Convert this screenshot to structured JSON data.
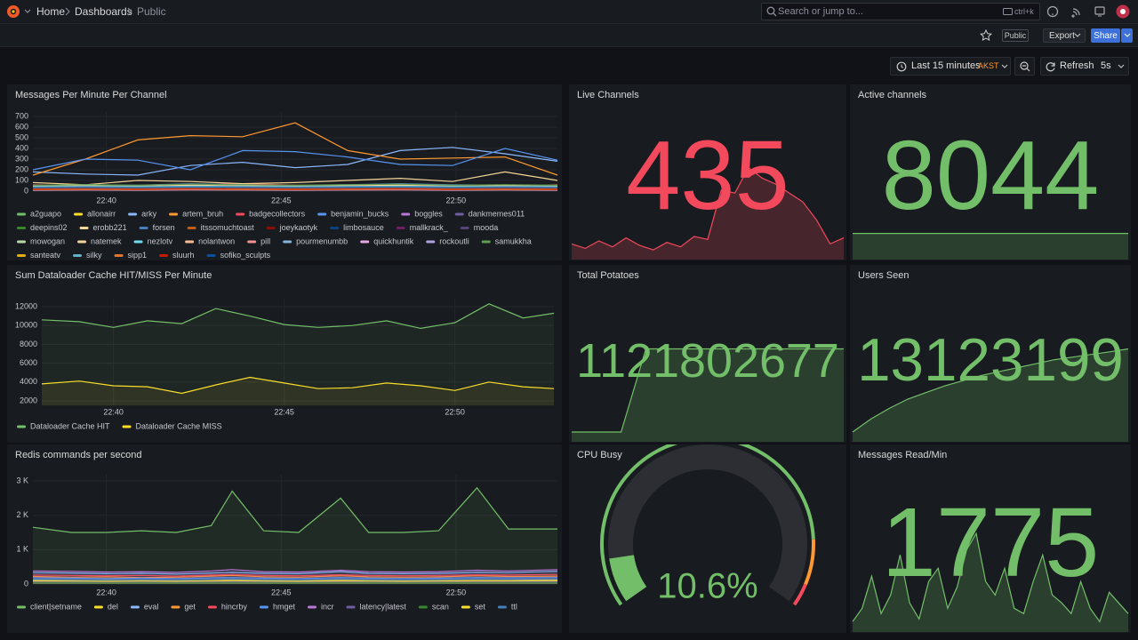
{
  "topbar": {
    "breadcrumbs": [
      "Home",
      "Dashboards",
      "Public"
    ],
    "search": "Search or jump to...",
    "shortcut": "ctrl+k"
  },
  "toolbar": {
    "public": "Public",
    "export": "Export",
    "share": "Share",
    "time_range": "Last 15 minutes",
    "timezone": "AKST",
    "refresh": "Refresh",
    "interval": "5s"
  },
  "panels": [
    {
      "type": "timeseries",
      "title": "Messages Per Minute Per Channel",
      "fill_opacity": 0,
      "x": [
        -2.1,
        -0.6,
        0.9,
        2.4,
        3.9,
        5.4,
        6.9,
        8.4,
        9.9,
        11.4,
        12.9
      ],
      "xlim": [
        -2.1,
        12.9
      ],
      "xticks": [
        {
          "value": 0,
          "label": "22:40"
        },
        {
          "value": 5,
          "label": "22:45"
        },
        {
          "value": 10,
          "label": "22:50"
        }
      ],
      "ylim": [
        0,
        740
      ],
      "yticks": [
        0,
        100,
        200,
        300,
        400,
        500,
        600,
        700
      ],
      "series": [
        {
          "name": "a2guapo",
          "color": "#73BF69",
          "values": [
            30,
            40,
            35,
            50,
            45,
            40,
            50,
            35,
            40,
            45,
            30
          ]
        },
        {
          "name": "allonairr",
          "color": "#FADE2A",
          "values": [
            20,
            25,
            30,
            20,
            35,
            40,
            30,
            25,
            20,
            30,
            25
          ]
        },
        {
          "name": "arky",
          "color": "#8AB8FF",
          "values": [
            180,
            160,
            150,
            240,
            270,
            220,
            250,
            380,
            410,
            350,
            280
          ]
        },
        {
          "name": "artem_bruh",
          "color": "#FF9830",
          "values": [
            150,
            300,
            480,
            520,
            510,
            640,
            380,
            300,
            310,
            320,
            150
          ]
        },
        {
          "name": "badgecollectors",
          "color": "#F2495C",
          "values": [
            60,
            50,
            40,
            60,
            70,
            55,
            50,
            60,
            50,
            40,
            60
          ]
        },
        {
          "name": "benjamin_bucks",
          "color": "#5794F2",
          "values": [
            200,
            300,
            290,
            200,
            380,
            370,
            320,
            250,
            240,
            400,
            290
          ]
        },
        {
          "name": "boggles",
          "color": "#B877D9",
          "values": [
            40,
            45,
            50,
            40,
            30,
            35,
            40,
            45,
            50,
            40,
            35
          ]
        },
        {
          "name": "dankmemes011",
          "color": "#705DA0",
          "values": [
            20,
            25,
            20,
            30,
            25,
            20,
            25,
            30,
            20,
            25,
            20
          ]
        },
        {
          "name": "deepins02",
          "color": "#37872D",
          "values": [
            10,
            15,
            10,
            20,
            15,
            10,
            15,
            20,
            10,
            15,
            10
          ]
        },
        {
          "name": "erobb221",
          "color": "#F4D598",
          "values": [
            80,
            60,
            100,
            90,
            70,
            80,
            100,
            120,
            90,
            180,
            100
          ]
        },
        {
          "name": "forsen",
          "color": "#447EBC",
          "values": [
            50,
            60,
            55,
            70,
            60,
            50,
            60,
            70,
            60,
            55,
            50
          ]
        },
        {
          "name": "itssomuchtoast",
          "color": "#C15C17",
          "values": [
            30,
            35,
            30,
            40,
            35,
            30,
            35,
            40,
            30,
            35,
            30
          ]
        },
        {
          "name": "joeykaotyk",
          "color": "#890F02",
          "values": [
            15,
            20,
            15,
            25,
            20,
            15,
            20,
            25,
            15,
            20,
            15
          ]
        },
        {
          "name": "limbosauce",
          "color": "#0A437C",
          "values": [
            25,
            30,
            25,
            35,
            30,
            25,
            30,
            35,
            25,
            30,
            25
          ]
        },
        {
          "name": "mallkrack_",
          "color": "#6D1F62",
          "values": [
            10,
            12,
            10,
            14,
            12,
            10,
            12,
            14,
            10,
            12,
            10
          ]
        },
        {
          "name": "mooda",
          "color": "#584477",
          "values": [
            35,
            40,
            35,
            45,
            40,
            35,
            40,
            45,
            35,
            40,
            35
          ]
        },
        {
          "name": "mowogan",
          "color": "#B7DBAB",
          "values": [
            20,
            22,
            20,
            24,
            22,
            20,
            22,
            24,
            20,
            22,
            20
          ]
        },
        {
          "name": "natemek",
          "color": "#F4D598",
          "values": [
            45,
            50,
            45,
            55,
            50,
            45,
            50,
            55,
            45,
            50,
            45
          ]
        },
        {
          "name": "nezlotv",
          "color": "#70DBED",
          "values": [
            12,
            14,
            12,
            16,
            14,
            12,
            14,
            16,
            12,
            14,
            12
          ]
        },
        {
          "name": "nolantwon",
          "color": "#F9BA8F",
          "values": [
            28,
            30,
            28,
            32,
            30,
            28,
            30,
            32,
            28,
            30,
            28
          ]
        },
        {
          "name": "pill",
          "color": "#F29191",
          "values": [
            18,
            20,
            18,
            22,
            20,
            18,
            20,
            22,
            18,
            20,
            18
          ]
        },
        {
          "name": "pourmenumbb",
          "color": "#82B5D8",
          "values": [
            38,
            40,
            38,
            42,
            40,
            38,
            40,
            42,
            38,
            40,
            38
          ]
        },
        {
          "name": "quickhuntik",
          "color": "#E5A8E2",
          "values": [
            8,
            10,
            8,
            12,
            10,
            8,
            10,
            12,
            8,
            10,
            8
          ]
        },
        {
          "name": "rockoutli",
          "color": "#AEA2E0",
          "values": [
            22,
            24,
            22,
            26,
            24,
            22,
            24,
            26,
            22,
            24,
            22
          ]
        },
        {
          "name": "samukkha",
          "color": "#629E51",
          "values": [
            55,
            60,
            55,
            65,
            60,
            55,
            60,
            65,
            55,
            60,
            55
          ]
        },
        {
          "name": "santeatv",
          "color": "#E5AC0E",
          "values": [
            14,
            16,
            14,
            18,
            16,
            14,
            16,
            18,
            14,
            16,
            14
          ]
        },
        {
          "name": "silky",
          "color": "#64B0C8",
          "values": [
            42,
            44,
            42,
            46,
            44,
            42,
            44,
            46,
            42,
            44,
            42
          ]
        },
        {
          "name": "sipp1",
          "color": "#E0752D",
          "values": [
            26,
            28,
            26,
            30,
            28,
            26,
            28,
            30,
            26,
            28,
            26
          ]
        },
        {
          "name": "sluurh",
          "color": "#BF1B00",
          "values": [
            16,
            18,
            16,
            20,
            18,
            16,
            18,
            20,
            16,
            18,
            16
          ]
        },
        {
          "name": "sofiko_sculpts",
          "color": "#0A50A1",
          "values": [
            32,
            34,
            32,
            36,
            34,
            32,
            34,
            36,
            32,
            34,
            32
          ]
        }
      ]
    },
    {
      "type": "stat",
      "title": "Live Channels",
      "value": 435,
      "color": "#F2495C",
      "sparkline": [
        130,
        115,
        140,
        120,
        150,
        125,
        110,
        135,
        120,
        155,
        145,
        310,
        300,
        385,
        350,
        330,
        300,
        270,
        210,
        130,
        150
      ]
    },
    {
      "type": "stat",
      "title": "Active channels",
      "value": 8044,
      "color": "#73BF69",
      "sparkline": [
        8044,
        8044,
        8044,
        8044,
        8044,
        8044,
        8044,
        8044,
        8044,
        8044
      ]
    },
    {
      "type": "timeseries",
      "title": "Sum Dataloader Cache HIT/MISS Per Minute",
      "fill_opacity": 0.08,
      "x": [
        -2.1,
        -1,
        0,
        1,
        2,
        3,
        4,
        5,
        6,
        7,
        8,
        9,
        10,
        11,
        12,
        12.9
      ],
      "xlim": [
        -2.1,
        12.9
      ],
      "xticks": [
        {
          "value": 0,
          "label": "22:40"
        },
        {
          "value": 5,
          "label": "22:45"
        },
        {
          "value": 10,
          "label": "22:50"
        }
      ],
      "ylim": [
        1500,
        12800
      ],
      "yticks": [
        2000,
        4000,
        6000,
        8000,
        10000,
        12000
      ],
      "series": [
        {
          "name": "Dataloader Cache HIT",
          "color": "#73BF69",
          "values": [
            10600,
            10400,
            9800,
            10500,
            10200,
            11800,
            11000,
            10100,
            9800,
            10000,
            10500,
            9700,
            10300,
            12300,
            10800,
            11300
          ]
        },
        {
          "name": "Dataloader Cache MISS",
          "color": "#FADE2A",
          "values": [
            3800,
            4100,
            3600,
            3500,
            2800,
            3700,
            4500,
            3900,
            3300,
            3400,
            3900,
            3600,
            3100,
            4000,
            3500,
            3300
          ]
        }
      ]
    },
    {
      "type": "stat",
      "title": "Total Potatoes",
      "value": 1121802677,
      "color": "#73BF69",
      "sparkline": [
        0,
        0,
        0,
        1121790000,
        1121792000,
        1121794000,
        1121796000,
        1121798000,
        1121799500,
        1121801000,
        1121802000,
        1121802677
      ]
    },
    {
      "type": "stat",
      "title": "Users Seen",
      "value": 13123199,
      "color": "#73BF69",
      "sparkline": [
        13060000,
        13070000,
        13078000,
        13085000,
        13090000,
        13095000,
        13099000,
        13103000,
        13106000,
        13109000,
        13112000,
        13115000,
        13117000,
        13119000,
        13121000,
        13123199
      ]
    },
    {
      "type": "timeseries",
      "title": "Redis commands per second",
      "fill_opacity": 0.1,
      "x": [
        -2.1,
        -1,
        0,
        1,
        2,
        3,
        3.6,
        4.5,
        5.5,
        6.7,
        7.5,
        8.5,
        9.5,
        10.6,
        11.5,
        12.9
      ],
      "xlim": [
        -2.1,
        12.9
      ],
      "xticks": [
        {
          "value": 0,
          "label": "22:40"
        },
        {
          "value": 5,
          "label": "22:45"
        },
        {
          "value": 10,
          "label": "22:50"
        }
      ],
      "ylim": [
        0,
        3200
      ],
      "yticks": [
        0,
        {
          "value": 1000,
          "label": "1 K"
        },
        {
          "value": 2000,
          "label": "2 K"
        },
        {
          "value": 3000,
          "label": "3 K"
        }
      ],
      "series": [
        {
          "name": "client|setname",
          "color": "#73BF69",
          "values": [
            1650,
            1500,
            1500,
            1550,
            1500,
            1700,
            2700,
            1550,
            1500,
            2500,
            1500,
            1500,
            1550,
            2800,
            1600,
            1600
          ]
        },
        {
          "name": "del",
          "color": "#FADE2A",
          "values": [
            120,
            110,
            130,
            120,
            110,
            140,
            130,
            120,
            110,
            130,
            120,
            110,
            120,
            140,
            130,
            120
          ]
        },
        {
          "name": "eval",
          "color": "#8AB8FF",
          "values": [
            330,
            320,
            300,
            310,
            290,
            320,
            340,
            310,
            300,
            360,
            310,
            300,
            310,
            340,
            330,
            370
          ]
        },
        {
          "name": "get",
          "color": "#FF9830",
          "values": [
            220,
            200,
            210,
            190,
            200,
            230,
            250,
            210,
            200,
            240,
            210,
            200,
            210,
            240,
            220,
            230
          ]
        },
        {
          "name": "hincrby",
          "color": "#F2495C",
          "values": [
            260,
            250,
            240,
            250,
            230,
            260,
            280,
            250,
            240,
            270,
            250,
            240,
            250,
            270,
            260,
            280
          ]
        },
        {
          "name": "hmget",
          "color": "#5794F2",
          "values": [
            180,
            170,
            160,
            170,
            160,
            180,
            190,
            170,
            160,
            190,
            170,
            160,
            170,
            190,
            180,
            190
          ]
        },
        {
          "name": "incr",
          "color": "#B877D9",
          "values": [
            380,
            370,
            350,
            360,
            340,
            380,
            420,
            360,
            350,
            400,
            360,
            350,
            360,
            400,
            380,
            420
          ]
        },
        {
          "name": "latency|latest",
          "color": "#705DA0",
          "values": [
            60,
            55,
            50,
            55,
            50,
            60,
            65,
            55,
            50,
            60,
            55,
            50,
            55,
            60,
            60,
            65
          ]
        },
        {
          "name": "scan",
          "color": "#37872D",
          "values": [
            30,
            28,
            25,
            28,
            25,
            30,
            32,
            28,
            25,
            30,
            28,
            25,
            28,
            30,
            30,
            32
          ]
        },
        {
          "name": "set",
          "color": "#FADE2A",
          "values": [
            90,
            85,
            80,
            85,
            80,
            90,
            95,
            85,
            80,
            90,
            85,
            80,
            85,
            90,
            90,
            95
          ]
        },
        {
          "name": "ttl",
          "color": "#447EBC",
          "values": [
            140,
            130,
            120,
            130,
            120,
            140,
            150,
            130,
            120,
            150,
            130,
            120,
            130,
            150,
            140,
            150
          ]
        }
      ]
    },
    {
      "type": "gauge",
      "title": "CPU Busy",
      "value": 10.6,
      "value_label": "10.6%",
      "min": 0,
      "max": 100,
      "thresholds": [
        {
          "value": 0,
          "color": "#73BF69"
        },
        {
          "value": 85,
          "color": "#FF9830"
        },
        {
          "value": 95,
          "color": "#F2495C"
        }
      ]
    },
    {
      "type": "stat",
      "title": "Messages Read/Min",
      "value": 1775,
      "color": "#73BF69",
      "sparkline": [
        1450,
        1500,
        1620,
        1480,
        1550,
        1700,
        1520,
        1460,
        1600,
        1650,
        1500,
        1580,
        1720,
        1780,
        1600,
        1550,
        1650,
        1500,
        1480,
        1600,
        1700,
        1550,
        1520,
        1480,
        1600,
        1500,
        1450,
        1560,
        1520,
        1480
      ]
    }
  ]
}
